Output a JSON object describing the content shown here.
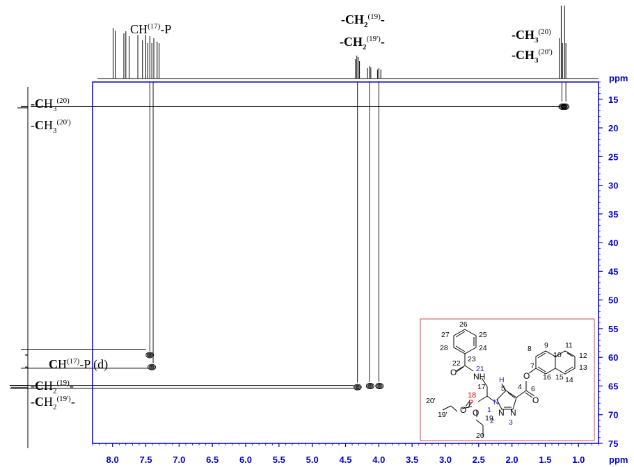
{
  "chart_data": {
    "type": "heatmap",
    "subtype": "2D HSQC NMR spectrum",
    "x_unit": "ppm",
    "y_unit": "ppm",
    "xlim": [
      8.3,
      0.7
    ],
    "ylim": [
      12,
      75
    ],
    "x_ticks": [
      "8.0",
      "7.5",
      "7.0",
      "6.5",
      "6.0",
      "5.5",
      "5.0",
      "4.5",
      "4.0",
      "3.5",
      "3.0",
      "2.5",
      "2.0",
      "1.5",
      "1.0"
    ],
    "y_ticks": [
      "15",
      "20",
      "25",
      "30",
      "35",
      "40",
      "45",
      "50",
      "55",
      "60",
      "65",
      "70",
      "75"
    ],
    "cross_peaks": [
      {
        "x": 1.24,
        "y": 16.3
      },
      {
        "x": 1.2,
        "y": 16.3
      },
      {
        "x": 7.44,
        "y": 59.6
      },
      {
        "x": 7.41,
        "y": 61.7
      },
      {
        "x": 4.32,
        "y": 65.2
      },
      {
        "x": 4.13,
        "y": 65.0
      },
      {
        "x": 3.99,
        "y": 65.0
      }
    ],
    "annotations": {
      "top_ch_p": [
        "CH",
        "(17)",
        "-P"
      ],
      "top_ch2_a": [
        "-CH",
        "2",
        "(19)",
        "-"
      ],
      "top_ch2_b": [
        "-CH",
        "2",
        "(19')",
        "-"
      ],
      "top_ch3_a": [
        "-CH",
        "3",
        "(20)"
      ],
      "top_ch3_b": [
        "-CH",
        "3",
        "(20')"
      ],
      "left_ch3_a": [
        "-",
        "C",
        "H",
        "3",
        "(20)"
      ],
      "left_ch3_b": [
        "-",
        "C",
        "H",
        "3",
        "(20')"
      ],
      "left_ch_p": [
        "C",
        "H",
        "(17)",
        "-P (d)"
      ],
      "left_ch2_a": [
        "-",
        "C",
        "H",
        "2",
        "(19)",
        "-"
      ],
      "left_ch2_b": [
        "-",
        "C",
        "H",
        "2",
        "(19')",
        "-"
      ]
    },
    "structure_labels": {
      "atoms": [
        "O",
        "O",
        "O",
        "O",
        "O",
        "NH",
        "N",
        "N",
        "N",
        "P",
        "H"
      ],
      "numbers": [
        "26",
        "27",
        "25",
        "28",
        "24",
        "23",
        "22",
        "21",
        "17",
        "18",
        "5",
        "4",
        "6",
        "7",
        "8",
        "9",
        "10",
        "11",
        "12",
        "13",
        "14",
        "15",
        "16",
        "20'",
        "19'",
        "19",
        "20",
        "1",
        "2",
        "3"
      ]
    }
  }
}
